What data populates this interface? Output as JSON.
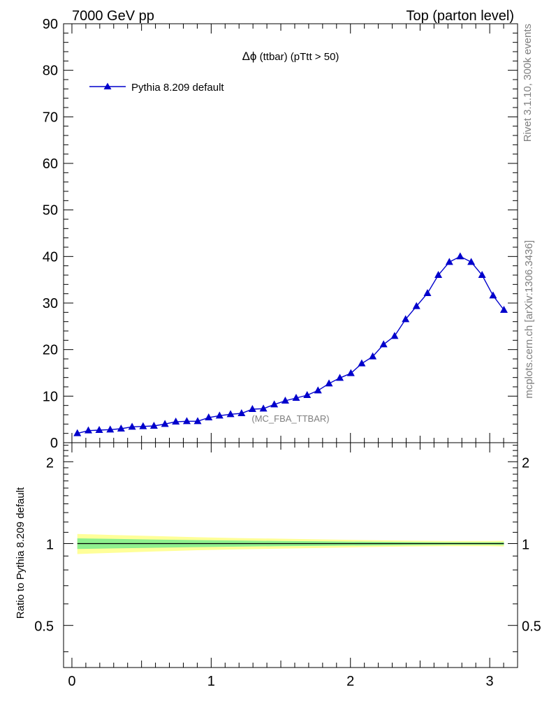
{
  "header": {
    "left": "7000 GeV pp",
    "right": "Top (parton level)"
  },
  "side": {
    "rivet": "Rivet 3.1.10,  300k events",
    "mcplots": "mcplots.cern.ch [arXiv:1306.3436]"
  },
  "plot": {
    "title_symbol": "Δϕ",
    "title_rest": " (ttbar) (pTtt > 50)",
    "analysis_id": "(MC_FBA_TTBAR)",
    "legend_label": "Pythia 8.209 default",
    "ratio_ylabel": "Ratio to Pythia 8.209 default"
  },
  "colors": {
    "series": "#0000cc",
    "band_inner": "#8ef08e",
    "band_outer": "#ffff99"
  },
  "chart_data": [
    {
      "type": "line",
      "panel": "main",
      "xlim": [
        -0.06,
        3.2
      ],
      "ylim": [
        0,
        90
      ],
      "yticks": [
        0,
        10,
        20,
        30,
        40,
        50,
        60,
        70,
        80,
        90
      ],
      "legend_position": "top-left",
      "series": [
        {
          "name": "Pythia 8.209 default",
          "marker": "triangle",
          "x": [
            0.039,
            0.118,
            0.196,
            0.275,
            0.353,
            0.432,
            0.511,
            0.589,
            0.668,
            0.746,
            0.825,
            0.903,
            0.982,
            1.06,
            1.139,
            1.218,
            1.296,
            1.375,
            1.453,
            1.532,
            1.61,
            1.689,
            1.767,
            1.846,
            1.924,
            2.003,
            2.081,
            2.16,
            2.238,
            2.317,
            2.396,
            2.474,
            2.553,
            2.631,
            2.71,
            2.788,
            2.867,
            2.945,
            3.024,
            3.102
          ],
          "y": [
            2.0,
            2.6,
            2.7,
            2.8,
            3.0,
            3.4,
            3.5,
            3.6,
            4.0,
            4.5,
            4.6,
            4.6,
            5.4,
            5.8,
            6.1,
            6.3,
            7.2,
            7.3,
            8.2,
            9.0,
            9.6,
            10.2,
            11.2,
            12.7,
            13.9,
            14.9,
            17.0,
            18.5,
            21.1,
            22.9,
            26.5,
            29.3,
            32.1,
            36.0,
            38.8,
            40.0,
            38.8,
            36.0,
            31.6,
            28.5
          ]
        }
      ]
    },
    {
      "type": "area",
      "panel": "ratio",
      "xlim": [
        -0.06,
        3.2
      ],
      "ylim": [
        0.35,
        2.35
      ],
      "yscale": "log",
      "yticks": [
        0.5,
        1,
        2
      ],
      "xticks": [
        0,
        1,
        2,
        3
      ],
      "ylabel": "Ratio to Pythia 8.209 default",
      "reference_line": 1,
      "bands": {
        "x": [
          0.039,
          0.3,
          0.6,
          0.9,
          1.2,
          1.5,
          1.8,
          2.1,
          2.4,
          2.7,
          3.0,
          3.102
        ],
        "inner_half_width": [
          0.045,
          0.04,
          0.035,
          0.03,
          0.026,
          0.022,
          0.019,
          0.016,
          0.013,
          0.011,
          0.011,
          0.012
        ],
        "outer_half_width": [
          0.085,
          0.075,
          0.065,
          0.055,
          0.048,
          0.042,
          0.036,
          0.03,
          0.025,
          0.022,
          0.022,
          0.024
        ]
      }
    }
  ]
}
